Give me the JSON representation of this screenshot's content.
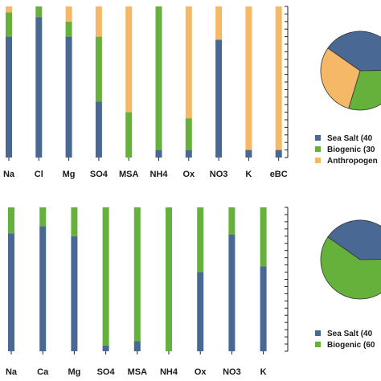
{
  "colors": {
    "sea_salt": "#4a6894",
    "biogenic": "#66b03c",
    "anthropogenic": "#f5b867",
    "axis": "#222222"
  },
  "chart_data": [
    {
      "type": "bar",
      "stacked": true,
      "normalized": true,
      "ylim": [
        0,
        1
      ],
      "categories": [
        "Na",
        "Cl",
        "Mg",
        "SO4",
        "MSA",
        "NH4",
        "Ox",
        "NO3",
        "K",
        "eBC"
      ],
      "series": [
        {
          "key": "sea_salt",
          "values": [
            0.8,
            0.93,
            0.8,
            0.37,
            0.0,
            0.05,
            0.05,
            0.78,
            0.05,
            0.05
          ]
        },
        {
          "key": "biogenic",
          "values": [
            0.16,
            0.07,
            0.1,
            0.43,
            0.3,
            0.95,
            0.21,
            0.0,
            0.0,
            0.0
          ]
        },
        {
          "key": "anthropogenic",
          "values": [
            0.04,
            0.0,
            0.1,
            0.2,
            0.7,
            0.0,
            0.74,
            0.22,
            0.95,
            0.95
          ]
        }
      ]
    },
    {
      "type": "pie",
      "slices": [
        {
          "name": "Sea Salt (40",
          "value": 40,
          "key": "sea_salt"
        },
        {
          "name": "Biogenic (30",
          "value": 30,
          "key": "biogenic"
        },
        {
          "name": "Anthropogen",
          "value": 30,
          "key": "anthropogenic"
        }
      ]
    },
    {
      "type": "bar",
      "stacked": true,
      "normalized": true,
      "ylim": [
        0,
        1
      ],
      "categories": [
        "Na",
        "Ca",
        "Mg",
        "SO4",
        "MSA",
        "NH4",
        "Ox",
        "NO3",
        "K"
      ],
      "series": [
        {
          "key": "sea_salt",
          "values": [
            0.82,
            0.87,
            0.8,
            0.04,
            0.07,
            0.0,
            0.55,
            0.81,
            0.59
          ]
        },
        {
          "key": "biogenic",
          "values": [
            0.18,
            0.13,
            0.2,
            0.96,
            0.93,
            1.0,
            0.45,
            0.19,
            0.41
          ]
        }
      ]
    },
    {
      "type": "pie",
      "slices": [
        {
          "name": "Sea Salt (40",
          "value": 40,
          "key": "sea_salt"
        },
        {
          "name": "Biogenic (60",
          "value": 60,
          "key": "biogenic"
        }
      ]
    }
  ]
}
